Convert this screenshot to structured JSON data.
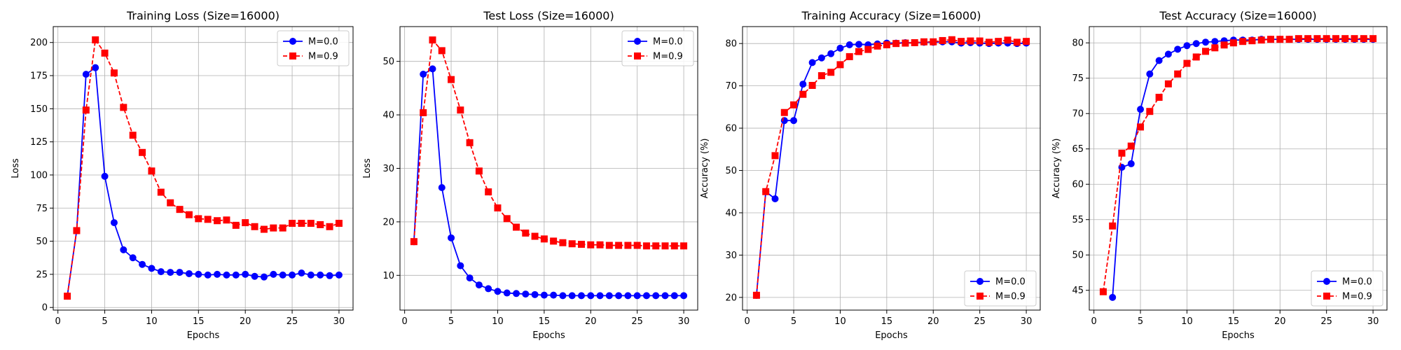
{
  "chart_data": [
    {
      "type": "line",
      "title": "Training Loss (Size=16000)",
      "xlabel": "Epochs",
      "ylabel": "Loss",
      "xlim": [
        -0.5,
        31.5
      ],
      "ylim": [
        -2,
        212
      ],
      "xticks": [
        0,
        5,
        10,
        15,
        20,
        25,
        30
      ],
      "yticks": [
        0,
        25,
        50,
        75,
        100,
        125,
        150,
        175,
        200
      ],
      "grid": true,
      "legend": "top-right",
      "x": [
        1,
        2,
        3,
        4,
        5,
        6,
        7,
        8,
        9,
        10,
        11,
        12,
        13,
        14,
        15,
        16,
        17,
        18,
        19,
        20,
        21,
        22,
        23,
        24,
        25,
        26,
        27,
        28,
        29,
        30
      ],
      "series": [
        {
          "name": "M=0.0",
          "color": "#0000ff",
          "marker": "circle",
          "dash": "solid",
          "values": [
            8.5,
            58,
            176,
            181,
            99,
            64,
            43.5,
            37.5,
            32.5,
            29.5,
            27,
            26.5,
            26.5,
            25.5,
            25,
            24.5,
            25,
            24.5,
            24.5,
            25,
            23.5,
            23,
            25,
            24.5,
            24.5,
            26,
            24.5,
            24.5,
            24,
            24.5
          ]
        },
        {
          "name": "M=0.9",
          "color": "#ff0000",
          "marker": "square",
          "dash": "dashed",
          "values": [
            8.5,
            58,
            149,
            202,
            192,
            177,
            151,
            130,
            117,
            103,
            87,
            79,
            74,
            70,
            67,
            66.5,
            65.5,
            66,
            62,
            64,
            61,
            59,
            60,
            60,
            63.5,
            63.5,
            63.5,
            62.5,
            61,
            63.5
          ]
        }
      ]
    },
    {
      "type": "line",
      "title": "Test Loss (Size=16000)",
      "xlabel": "Epochs",
      "ylabel": "Loss",
      "xlim": [
        -0.5,
        31.5
      ],
      "ylim": [
        3.5,
        56.5
      ],
      "xticks": [
        0,
        5,
        10,
        15,
        20,
        25,
        30
      ],
      "yticks": [
        10,
        20,
        30,
        40,
        50
      ],
      "grid": true,
      "legend": "top-right",
      "x": [
        1,
        2,
        3,
        4,
        5,
        6,
        7,
        8,
        9,
        10,
        11,
        12,
        13,
        14,
        15,
        16,
        17,
        18,
        19,
        20,
        21,
        22,
        23,
        24,
        25,
        26,
        27,
        28,
        29,
        30
      ],
      "series": [
        {
          "name": "M=0.0",
          "color": "#0000ff",
          "marker": "circle",
          "dash": "solid",
          "values": [
            16.3,
            47.6,
            48.6,
            26.4,
            17,
            11.8,
            9.5,
            8.2,
            7.5,
            7,
            6.7,
            6.6,
            6.5,
            6.4,
            6.3,
            6.3,
            6.2,
            6.2,
            6.2,
            6.2,
            6.2,
            6.2,
            6.2,
            6.2,
            6.2,
            6.2,
            6.2,
            6.2,
            6.2,
            6.2
          ]
        },
        {
          "name": "M=0.9",
          "color": "#ff0000",
          "marker": "square",
          "dash": "dashed",
          "values": [
            16.3,
            40.4,
            54,
            52,
            46.6,
            40.9,
            34.8,
            29.5,
            25.6,
            22.6,
            20.6,
            19,
            17.9,
            17.3,
            16.8,
            16.4,
            16.1,
            15.9,
            15.8,
            15.7,
            15.7,
            15.6,
            15.6,
            15.6,
            15.6,
            15.5,
            15.5,
            15.5,
            15.5,
            15.5
          ]
        }
      ]
    },
    {
      "type": "line",
      "title": "Training Accuracy (Size=16000)",
      "xlabel": "Epochs",
      "ylabel": "Accuracy (%)",
      "xlim": [
        -0.5,
        31.5
      ],
      "ylim": [
        17,
        84
      ],
      "xticks": [
        0,
        5,
        10,
        15,
        20,
        25,
        30
      ],
      "yticks": [
        20,
        30,
        40,
        50,
        60,
        70,
        80
      ],
      "grid": true,
      "legend": "bottom-right",
      "x": [
        1,
        2,
        3,
        4,
        5,
        6,
        7,
        8,
        9,
        10,
        11,
        12,
        13,
        14,
        15,
        16,
        17,
        18,
        19,
        20,
        21,
        22,
        23,
        24,
        25,
        26,
        27,
        28,
        29,
        30
      ],
      "series": [
        {
          "name": "M=0.0",
          "color": "#0000ff",
          "marker": "circle",
          "dash": "solid",
          "values": [
            20.5,
            45,
            43.3,
            61.8,
            61.8,
            70.4,
            75.5,
            76.6,
            77.6,
            78.9,
            79.7,
            79.8,
            79.7,
            79.9,
            80.1,
            80.1,
            80.2,
            80.2,
            80.3,
            80.3,
            80.4,
            80.4,
            80.1,
            80.2,
            80.1,
            80,
            80.1,
            80.1,
            80,
            80.1
          ]
        },
        {
          "name": "M=0.9",
          "color": "#ff0000",
          "marker": "square",
          "dash": "dashed",
          "values": [
            20.5,
            45,
            53.5,
            63.7,
            65.5,
            68,
            70.1,
            72.4,
            73.2,
            75,
            76.9,
            78.1,
            78.6,
            79.4,
            79.7,
            80,
            80.1,
            80.2,
            80.4,
            80.4,
            80.7,
            80.9,
            80.5,
            80.6,
            80.6,
            80.3,
            80.5,
            80.8,
            80.3,
            80.5
          ]
        }
      ]
    },
    {
      "type": "line",
      "title": "Test Accuracy (Size=16000)",
      "xlabel": "Epochs",
      "ylabel": "Accuracy (%)",
      "xlim": [
        -0.5,
        31.5
      ],
      "ylim": [
        42.2,
        82.3
      ],
      "xticks": [
        0,
        5,
        10,
        15,
        20,
        25,
        30
      ],
      "yticks": [
        45,
        50,
        55,
        60,
        65,
        70,
        75,
        80
      ],
      "grid": true,
      "legend": "bottom-right",
      "x": [
        1,
        2,
        3,
        4,
        5,
        6,
        7,
        8,
        9,
        10,
        11,
        12,
        13,
        14,
        15,
        16,
        17,
        18,
        19,
        20,
        21,
        22,
        23,
        24,
        25,
        26,
        27,
        28,
        29,
        30
      ],
      "series": [
        {
          "name": "M=0.0",
          "color": "#0000ff",
          "marker": "circle",
          "dash": "solid",
          "values": [
            null,
            44,
            62.4,
            62.9,
            70.6,
            75.6,
            77.5,
            78.4,
            79.1,
            79.6,
            79.9,
            80.1,
            80.2,
            80.3,
            80.4,
            80.4,
            80.4,
            80.5,
            80.5,
            80.5,
            80.5,
            80.5,
            80.5,
            80.5,
            80.5,
            80.5,
            80.5,
            80.5,
            80.5,
            80.5
          ]
        },
        {
          "name": "M=0.9",
          "color": "#ff0000",
          "marker": "square",
          "dash": "dashed",
          "values": [
            44.8,
            54.1,
            64.4,
            65.4,
            68.1,
            70.3,
            72.3,
            74.2,
            75.6,
            77.1,
            78,
            78.8,
            79.3,
            79.7,
            80,
            80.2,
            80.3,
            80.4,
            80.5,
            80.5,
            80.5,
            80.6,
            80.6,
            80.6,
            80.6,
            80.6,
            80.6,
            80.6,
            80.6,
            80.6
          ]
        }
      ]
    }
  ]
}
